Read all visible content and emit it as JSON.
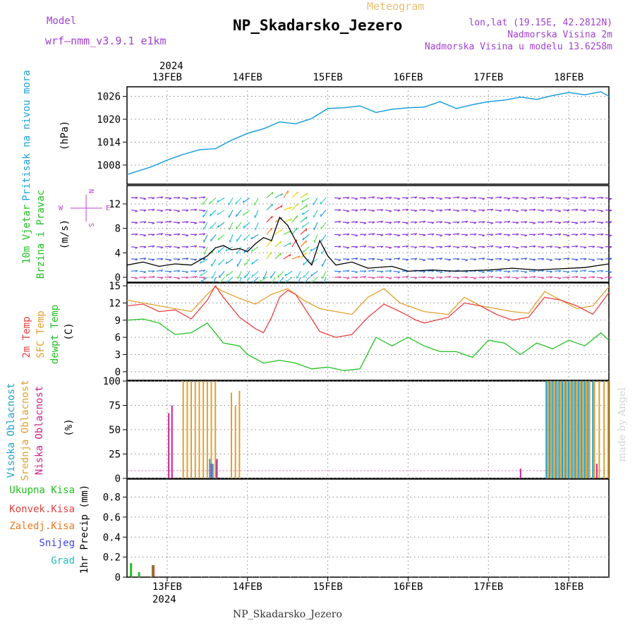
{
  "header": {
    "model_label": "Model",
    "model_name": "wrf—nmm_v3.9.1 e1km",
    "meteogram_label": "Meteogram",
    "station_title": "NP_Skadarsko_Jezero",
    "coords": "lon,lat (19.15E, 42.2812N)",
    "elevation": "Nadmorska Visina 2m",
    "model_elevation": "Nadmorska Visina u modelu 13.6258m",
    "footer_title": "NP_Skadarsko_Jezero",
    "watermark": "made by Angel"
  },
  "time_axis": {
    "year": "2024",
    "tick_labels": [
      "13FEB",
      "14FEB",
      "15FEB",
      "16FEB",
      "17FEB",
      "18FEB"
    ],
    "tick_days": [
      13,
      14,
      15,
      16,
      17,
      18
    ],
    "range_days": [
      12.5,
      18.5
    ]
  },
  "colors": {
    "pressure": "#1ea0dc",
    "wind_label": "#20c020",
    "t2m": "#e84040",
    "sfc": "#e0a030",
    "dewpt": "#20c020",
    "cloud_high": "#20a0d0",
    "cloud_mid": "#e0a030",
    "cloud_low": "#d02090",
    "precip_total": "#20c020",
    "precip_conv": "#e84040",
    "precip_frozen": "#f07820",
    "precip_snow": "#4040e0",
    "precip_hail": "#20c0c0",
    "compass": "#c040e0",
    "label_purple": "#a040d0"
  },
  "panels": {
    "pressure": {
      "label_line1": "Pritisak na nivou mora",
      "unit": "(hPa)",
      "ticks": [
        "1008",
        "1014",
        "1020",
        "1026"
      ]
    },
    "wind": {
      "label_line1": "10m Vjetar",
      "label_line2": "Brzina i Pravac",
      "unit": "(m/s)",
      "ticks": [
        "0",
        "4",
        "8",
        "12"
      ],
      "compass_w": "W",
      "compass_e": "E",
      "compass_n": "N",
      "compass_s": "S"
    },
    "temp": {
      "label_t2m": "2m Temp",
      "label_sfc": "SFC Temp",
      "label_dew": "dewpt Temp",
      "unit": "(C)",
      "ticks": [
        "0",
        "3",
        "6",
        "9",
        "12",
        "15"
      ]
    },
    "cloud": {
      "label_high": "Visoka Oblacnost",
      "label_mid": "Srednja Oblacnost",
      "label_low": "Niska Oblacnost",
      "unit": "(%)",
      "ticks": [
        "0",
        "25",
        "50",
        "75",
        "100"
      ]
    },
    "precip": {
      "legend_total": "Ukupna Kisa",
      "legend_conv": "Konvek.Kisa",
      "legend_frozen": "Zaledj.Kisa",
      "legend_snow": "Snijeg",
      "legend_hail": "Grad",
      "ylabel": "1hr Precip (mm)",
      "ticks": [
        "0",
        "0.2",
        "0.4",
        "0.6",
        "0.8"
      ]
    }
  },
  "chart_data": [
    {
      "type": "line",
      "title": "",
      "ylabel": "Pritisak na nivou mora (hPa)",
      "ylim": [
        1003,
        1028.5
      ],
      "grid": true,
      "series": [
        {
          "name": "Pritisak na nivou mora",
          "x": [
            12.5,
            12.6,
            12.8,
            13.0,
            13.2,
            13.4,
            13.6,
            13.8,
            14.0,
            14.2,
            14.4,
            14.6,
            14.8,
            15.0,
            15.2,
            15.4,
            15.6,
            15.8,
            16.0,
            16.2,
            16.4,
            16.6,
            16.8,
            17.0,
            17.2,
            17.4,
            17.6,
            17.8,
            18.0,
            18.2,
            18.4,
            18.5
          ],
          "y": [
            1005.5,
            1006.2,
            1007.5,
            1009.3,
            1010.8,
            1012,
            1012.3,
            1014.5,
            1016.3,
            1017.5,
            1019.3,
            1018.8,
            1020.2,
            1022.8,
            1023,
            1023.5,
            1021.8,
            1022.6,
            1023,
            1023.2,
            1024.6,
            1022.8,
            1023.8,
            1024.6,
            1025,
            1025.8,
            1025.2,
            1026.2,
            1027,
            1026.4,
            1027.2,
            1026
          ]
        }
      ]
    },
    {
      "type": "line",
      "title": "",
      "ylabel": "10m Vjetar Brzina i Pravac (m/s)",
      "ylim": [
        -0.8,
        15
      ],
      "grid": true,
      "series": [
        {
          "name": "10m Vjetar",
          "x": [
            12.5,
            12.7,
            12.9,
            13.1,
            13.3,
            13.5,
            13.6,
            13.7,
            13.8,
            13.9,
            14.0,
            14.1,
            14.2,
            14.3,
            14.4,
            14.5,
            14.6,
            14.7,
            14.8,
            14.9,
            15.0,
            15.1,
            15.3,
            15.5,
            15.8,
            16.0,
            16.3,
            16.6,
            17.0,
            17.3,
            17.6,
            17.9,
            18.2,
            18.5
          ],
          "y": [
            2,
            2.5,
            1.8,
            2.2,
            2,
            3.5,
            4.8,
            5.2,
            4.5,
            4.7,
            4.2,
            5.5,
            6.5,
            6,
            9.8,
            8.5,
            6,
            3.5,
            2,
            6,
            3.5,
            2,
            2.5,
            1.5,
            1.8,
            1,
            1.2,
            1,
            1.2,
            1.5,
            1.2,
            1.4,
            1.6,
            2.2
          ]
        }
      ]
    },
    {
      "type": "line",
      "title": "",
      "ylabel": "(C)",
      "ylim": [
        -1.5,
        15.5
      ],
      "grid": true,
      "series": [
        {
          "name": "2m Temp",
          "x": [
            12.5,
            12.7,
            12.9,
            13.1,
            13.3,
            13.5,
            13.6,
            13.7,
            13.9,
            14.1,
            14.2,
            14.3,
            14.4,
            14.5,
            14.6,
            14.8,
            14.9,
            15.0,
            15.1,
            15.3,
            15.5,
            15.7,
            15.9,
            16.1,
            16.2,
            16.5,
            16.7,
            16.9,
            17.1,
            17.3,
            17.5,
            17.7,
            17.9,
            18.1,
            18.3,
            18.5
          ],
          "y": [
            11.5,
            11.8,
            10.5,
            10.8,
            9.2,
            12.5,
            15,
            13,
            9.5,
            7.5,
            6.8,
            9.5,
            13,
            14.2,
            13.5,
            9.2,
            7,
            6.5,
            6,
            6.5,
            9.5,
            11.8,
            10.5,
            9,
            8.5,
            9.5,
            12,
            11.5,
            10,
            9,
            9.5,
            13,
            12.5,
            11.5,
            10,
            13.8
          ]
        },
        {
          "name": "SFC Temp",
          "x": [
            12.5,
            12.7,
            12.9,
            13.1,
            13.3,
            13.5,
            13.6,
            13.7,
            13.9,
            14.1,
            14.3,
            14.5,
            14.7,
            14.9,
            15.1,
            15.3,
            15.5,
            15.7,
            15.9,
            16.2,
            16.5,
            16.7,
            16.9,
            17.1,
            17.3,
            17.5,
            17.7,
            17.9,
            18.1,
            18.3,
            18.5
          ],
          "y": [
            12.5,
            12,
            11.5,
            11,
            10.5,
            13.5,
            14.8,
            14,
            12.8,
            11.8,
            13.5,
            14.5,
            12.5,
            11,
            10.5,
            10,
            13,
            14.5,
            12,
            10.5,
            10,
            13,
            11.5,
            11,
            10.5,
            10.2,
            14,
            12.5,
            11,
            11.5,
            14.8
          ]
        },
        {
          "name": "dewpt Temp",
          "x": [
            12.5,
            12.7,
            12.9,
            13.1,
            13.3,
            13.5,
            13.7,
            13.9,
            14.0,
            14.2,
            14.4,
            14.6,
            14.8,
            15.0,
            15.2,
            15.4,
            15.6,
            15.8,
            16.0,
            16.2,
            16.4,
            16.6,
            16.8,
            17.0,
            17.2,
            17.4,
            17.6,
            17.8,
            18.0,
            18.2,
            18.4,
            18.5
          ],
          "y": [
            9,
            9.2,
            8.5,
            6.5,
            6.8,
            8.5,
            5,
            4.5,
            3,
            1.5,
            2,
            1.5,
            0.5,
            0.8,
            0.2,
            0.5,
            6,
            4.5,
            6,
            4.5,
            3.5,
            3.5,
            2.5,
            5.5,
            5,
            3,
            5,
            4,
            5.5,
            4.5,
            6.8,
            5.5
          ]
        }
      ]
    },
    {
      "type": "bar",
      "title": "",
      "ylabel": "(%)",
      "ylim": [
        0,
        100
      ],
      "grid": true,
      "series": [
        {
          "name": "Visoka Oblacnost",
          "x": [
            13.53,
            13.57,
            13.61,
            17.72,
            17.76,
            17.8,
            17.84,
            17.88,
            17.92,
            17.96,
            18.0,
            18.04,
            18.08,
            18.12,
            18.16,
            18.2,
            18.24,
            18.3
          ],
          "y": [
            20,
            15,
            18,
            100,
            100,
            100,
            100,
            100,
            100,
            100,
            100,
            100,
            100,
            100,
            100,
            100,
            100,
            100
          ]
        },
        {
          "name": "Srednja Oblacnost",
          "x": [
            13.2,
            13.25,
            13.3,
            13.35,
            13.4,
            13.45,
            13.5,
            13.55,
            13.6,
            13.8,
            13.85,
            13.9,
            17.74,
            17.78,
            17.82,
            17.86,
            17.9,
            17.94,
            17.98,
            18.02,
            18.06,
            18.1,
            18.14,
            18.18,
            18.22,
            18.26,
            18.32,
            18.38,
            18.44,
            18.49
          ],
          "y": [
            100,
            100,
            100,
            100,
            100,
            100,
            100,
            100,
            100,
            88,
            75,
            90,
            100,
            100,
            100,
            100,
            100,
            100,
            100,
            100,
            100,
            100,
            100,
            100,
            100,
            100,
            100,
            100,
            100,
            100
          ]
        },
        {
          "name": "Niska Oblacnost",
          "x": [
            13.02,
            13.06,
            13.55,
            13.62,
            17.4,
            18.35
          ],
          "y": [
            67,
            75,
            15,
            20,
            10,
            15
          ]
        }
      ]
    },
    {
      "type": "bar",
      "title": "",
      "ylabel": "1hr Precip (mm)",
      "ylim": [
        0,
        0.98
      ],
      "grid": true,
      "series": [
        {
          "name": "Ukupna Kisa",
          "x": [
            12.55,
            12.65,
            12.82
          ],
          "y": [
            0.14,
            0.05,
            0.12
          ]
        },
        {
          "name": "Konvek.Kisa",
          "x": [
            12.83
          ],
          "y": [
            0.12
          ]
        },
        {
          "name": "Zaledj.Kisa",
          "x": [],
          "y": []
        },
        {
          "name": "Snijeg",
          "x": [],
          "y": []
        },
        {
          "name": "Grad",
          "x": [],
          "y": []
        }
      ]
    }
  ]
}
